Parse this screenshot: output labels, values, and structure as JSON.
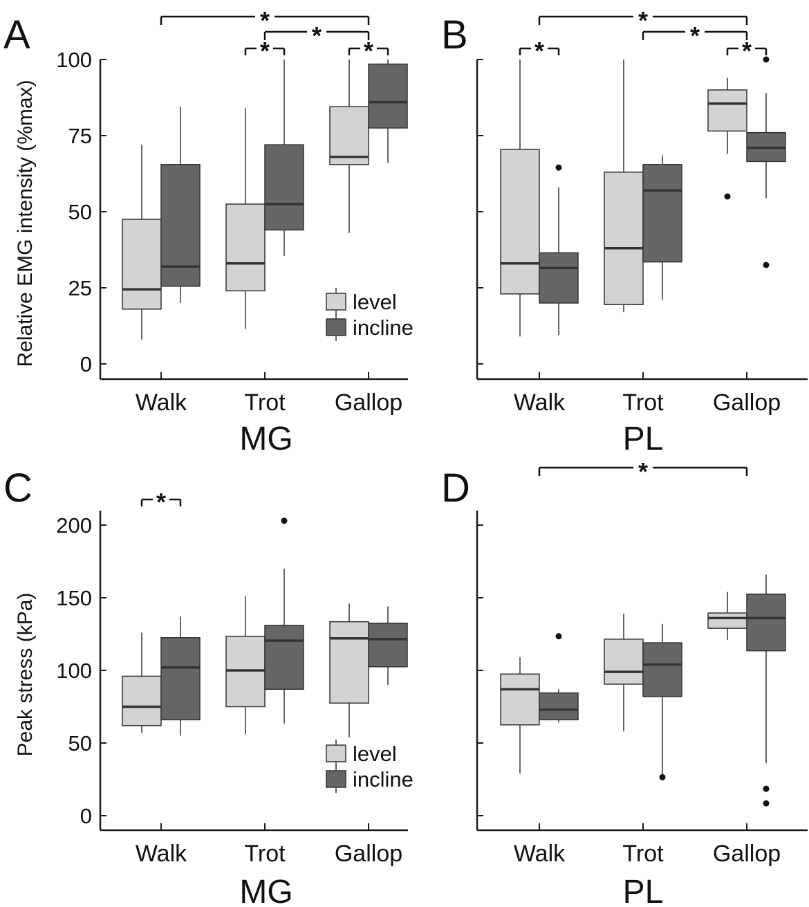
{
  "figure": {
    "colors": {
      "level": "#d3d3d3",
      "incline": "#666666",
      "stroke": "#333333",
      "axis": "#1a1a1a"
    }
  },
  "chart_data": [
    {
      "panel": "A",
      "type": "box",
      "muscle_label": "MG",
      "categories": [
        "Walk",
        "Trot",
        "Gallop"
      ],
      "ylabel": "Relative EMG intensity (%max)",
      "ylim": [
        -5,
        100
      ],
      "yticks": [
        "0",
        "25",
        "50",
        "75",
        "100"
      ],
      "legend": [
        "level",
        "incline"
      ],
      "series": [
        {
          "name": "level",
          "boxes": [
            {
              "whisker_low": 8,
              "q1": 18,
              "median": 24.5,
              "q3": 47.5,
              "whisker_high": 72,
              "outliers": []
            },
            {
              "whisker_low": 11.5,
              "q1": 24,
              "median": 33,
              "q3": 52.5,
              "whisker_high": 84,
              "outliers": []
            },
            {
              "whisker_low": 43,
              "q1": 65.5,
              "median": 68,
              "q3": 84.5,
              "whisker_high": 100,
              "outliers": []
            }
          ]
        },
        {
          "name": "incline",
          "boxes": [
            {
              "whisker_low": 20,
              "q1": 25.5,
              "median": 32,
              "q3": 65.5,
              "whisker_high": 84.5,
              "outliers": []
            },
            {
              "whisker_low": 35.5,
              "q1": 44,
              "median": 52.5,
              "q3": 72,
              "whisker_high": 100,
              "outliers": []
            },
            {
              "whisker_low": 66,
              "q1": 77.5,
              "median": 86,
              "q3": 98.5,
              "whisker_high": 100,
              "outliers": []
            }
          ]
        }
      ],
      "significance": [
        {
          "type": "across",
          "from": 0,
          "to": 2,
          "tier": 0,
          "label": "*"
        },
        {
          "type": "across",
          "from": 1,
          "to": 2,
          "tier": 1,
          "label": "*"
        },
        {
          "type": "within",
          "category": 1,
          "label": "*"
        },
        {
          "type": "within",
          "category": 2,
          "label": "*"
        }
      ]
    },
    {
      "panel": "B",
      "type": "box",
      "muscle_label": "PL",
      "categories": [
        "Walk",
        "Trot",
        "Gallop"
      ],
      "ylabel": "",
      "ylim": [
        -5,
        100
      ],
      "yticks": [],
      "legend": [],
      "series": [
        {
          "name": "level",
          "boxes": [
            {
              "whisker_low": 9,
              "q1": 23,
              "median": 33,
              "q3": 70.5,
              "whisker_high": 100,
              "outliers": []
            },
            {
              "whisker_low": 17,
              "q1": 19.5,
              "median": 38,
              "q3": 63,
              "whisker_high": 100,
              "outliers": []
            },
            {
              "whisker_low": 69,
              "q1": 76.5,
              "median": 85.5,
              "q3": 90,
              "whisker_high": 94,
              "outliers": [
                55
              ]
            }
          ]
        },
        {
          "name": "incline",
          "boxes": [
            {
              "whisker_low": 9.5,
              "q1": 20,
              "median": 31.5,
              "q3": 36.5,
              "whisker_high": 58,
              "outliers": [
                64.5
              ]
            },
            {
              "whisker_low": 21,
              "q1": 33.5,
              "median": 57,
              "q3": 65.5,
              "whisker_high": 68.5,
              "outliers": []
            },
            {
              "whisker_low": 54.5,
              "q1": 66.5,
              "median": 71,
              "q3": 76,
              "whisker_high": 89,
              "outliers": [
                100,
                32.5
              ]
            }
          ]
        }
      ],
      "significance": [
        {
          "type": "across",
          "from": 0,
          "to": 2,
          "tier": 0,
          "label": "*"
        },
        {
          "type": "across",
          "from": 1,
          "to": 2,
          "tier": 1,
          "label": "*"
        },
        {
          "type": "within",
          "category": 0,
          "label": "*"
        },
        {
          "type": "within",
          "category": 2,
          "label": "*"
        }
      ]
    },
    {
      "panel": "C",
      "type": "box",
      "muscle_label": "MG",
      "categories": [
        "Walk",
        "Trot",
        "Gallop"
      ],
      "ylabel": "Peak stress (kPa)",
      "ylim": [
        -10,
        210
      ],
      "yticks": [
        "0",
        "50",
        "100",
        "150",
        "200"
      ],
      "legend": [
        "level",
        "incline"
      ],
      "series": [
        {
          "name": "level",
          "boxes": [
            {
              "whisker_low": 57,
              "q1": 62,
              "median": 75,
              "q3": 96,
              "whisker_high": 126,
              "outliers": []
            },
            {
              "whisker_low": 56,
              "q1": 75,
              "median": 100,
              "q3": 123.5,
              "whisker_high": 151,
              "outliers": []
            },
            {
              "whisker_low": 54,
              "q1": 77.5,
              "median": 122,
              "q3": 133.5,
              "whisker_high": 146,
              "outliers": []
            }
          ]
        },
        {
          "name": "incline",
          "boxes": [
            {
              "whisker_low": 55,
              "q1": 66,
              "median": 102,
              "q3": 122.5,
              "whisker_high": 137,
              "outliers": []
            },
            {
              "whisker_low": 63.5,
              "q1": 87,
              "median": 120.5,
              "q3": 131,
              "whisker_high": 170,
              "outliers": [
                203
              ]
            },
            {
              "whisker_low": 90,
              "q1": 102.5,
              "median": 121.5,
              "q3": 132.5,
              "whisker_high": 144,
              "outliers": []
            }
          ]
        }
      ],
      "significance": [
        {
          "type": "within",
          "category": 0,
          "label": "*"
        }
      ]
    },
    {
      "panel": "D",
      "type": "box",
      "muscle_label": "PL",
      "categories": [
        "Walk",
        "Trot",
        "Gallop"
      ],
      "ylabel": "",
      "ylim": [
        -10,
        210
      ],
      "yticks": [],
      "legend": [],
      "series": [
        {
          "name": "level",
          "boxes": [
            {
              "whisker_low": 29,
              "q1": 62.5,
              "median": 87,
              "q3": 97.5,
              "whisker_high": 109,
              "outliers": []
            },
            {
              "whisker_low": 58,
              "q1": 90.5,
              "median": 99,
              "q3": 121.5,
              "whisker_high": 139,
              "outliers": []
            },
            {
              "whisker_low": 121,
              "q1": 129,
              "median": 136,
              "q3": 139.5,
              "whisker_high": 154,
              "outliers": []
            }
          ]
        },
        {
          "name": "incline",
          "boxes": [
            {
              "whisker_low": 64,
              "q1": 66,
              "median": 73,
              "q3": 84.5,
              "whisker_high": 87,
              "outliers": [
                123.5
              ]
            },
            {
              "whisker_low": 26,
              "q1": 82,
              "median": 104,
              "q3": 119,
              "whisker_high": 132,
              "outliers": [
                26.5
              ]
            },
            {
              "whisker_low": 36,
              "q1": 113.5,
              "median": 136,
              "q3": 152.5,
              "whisker_high": 166,
              "outliers": [
                18.5,
                8.5
              ]
            }
          ]
        }
      ],
      "significance": [
        {
          "type": "across",
          "from": 0,
          "to": 2,
          "tier": 0,
          "label": "*"
        }
      ]
    }
  ]
}
